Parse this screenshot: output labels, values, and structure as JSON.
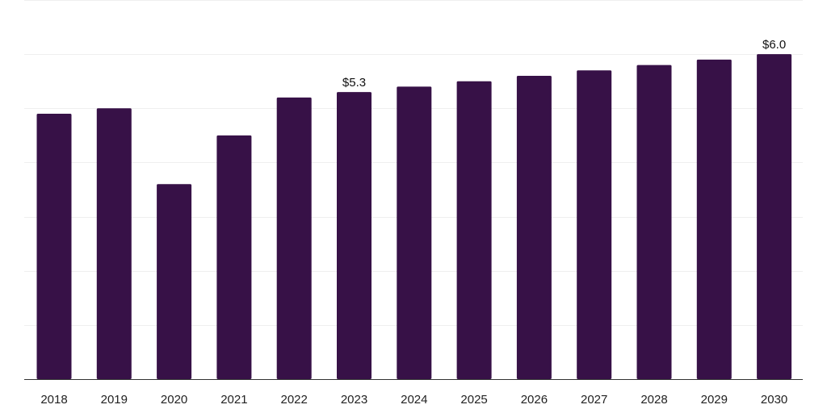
{
  "chart_data": {
    "type": "bar",
    "title": "",
    "xlabel": "",
    "ylabel": "",
    "categories": [
      "2018",
      "2019",
      "2020",
      "2021",
      "2022",
      "2023",
      "2024",
      "2025",
      "2026",
      "2027",
      "2028",
      "2029",
      "2030"
    ],
    "values": [
      4.9,
      5.0,
      3.6,
      4.5,
      5.2,
      5.3,
      5.4,
      5.5,
      5.6,
      5.7,
      5.8,
      5.9,
      6.0
    ],
    "data_labels": [
      {
        "category": "2023",
        "text": "$5.3"
      },
      {
        "category": "2030",
        "text": "$6.0"
      }
    ],
    "ylim": [
      0,
      7
    ],
    "grid": true,
    "legend": "none",
    "bar_color": "#371147",
    "axis_color": "#333333",
    "grid_color": "#efefef"
  }
}
